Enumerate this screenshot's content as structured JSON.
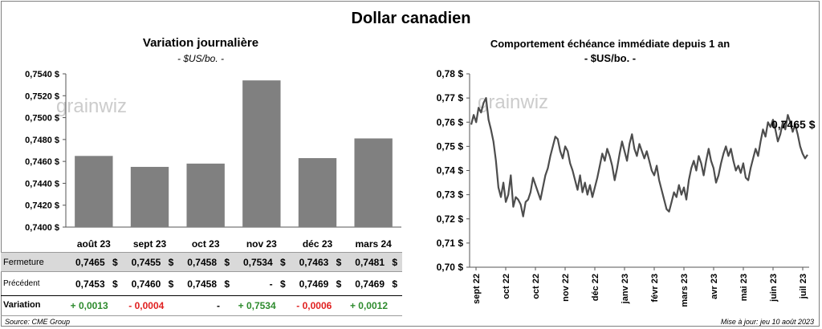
{
  "title": "Dollar canadien",
  "left_panel": {
    "title": "Variation  journalière",
    "subtitle": "- $US/bo. -"
  },
  "right_panel": {
    "title": "Comportement échéance immédiate depuis 1 an",
    "subtitle": "- $US/bo. -",
    "last_value_label": "0,7465 $"
  },
  "watermark": "grainwiz",
  "table": {
    "rows": [
      {
        "label": "Fermeture",
        "values": [
          "0,7465",
          "0,7455",
          "0,7458",
          "0,7534",
          "0,7463",
          "0,7481"
        ],
        "unit": "$"
      },
      {
        "label": "Précédent",
        "values": [
          "0,7453",
          "0,7460",
          "0,7458",
          "-",
          "0,7469",
          "0,7469"
        ],
        "unit": "$"
      }
    ],
    "variation_label": "Variation",
    "variation": [
      "+ 0,0013",
      "- 0,0004",
      "-",
      "+ 0,7534",
      "- 0,0006",
      "+ 0,0012"
    ]
  },
  "source": "Source: CME Group",
  "updated": "Mise à jour: jeu 10 août 2023",
  "colors": {
    "bar": "#808080",
    "line": "#4d4d4d",
    "table_band": "#d9d9d9",
    "positive": "#2e8b2e",
    "negative": "#e02020"
  },
  "chart_data": [
    {
      "type": "bar",
      "categories": [
        "août 23",
        "sept 23",
        "oct 23",
        "nov 23",
        "déc 23",
        "mars 24"
      ],
      "values": [
        0.7465,
        0.7455,
        0.7458,
        0.7534,
        0.7463,
        0.7481
      ],
      "ylim": [
        0.74,
        0.754
      ],
      "yticks": [
        0.74,
        0.742,
        0.744,
        0.746,
        0.748,
        0.75,
        0.752,
        0.754
      ],
      "ytick_labels": [
        "0,7400 $",
        "0,7420 $",
        "0,7440 $",
        "0,7460 $",
        "0,7480 $",
        "0,7500 $",
        "0,7520 $",
        "0,7540 $"
      ],
      "grid": false
    },
    {
      "type": "line",
      "ylim": [
        0.7,
        0.78
      ],
      "yticks": [
        0.7,
        0.71,
        0.72,
        0.73,
        0.74,
        0.75,
        0.76,
        0.77,
        0.78
      ],
      "ytick_labels": [
        "0,70 $",
        "0,71 $",
        "0,72 $",
        "0,73 $",
        "0,74 $",
        "0,75 $",
        "0,76 $",
        "0,77 $",
        "0,78 $"
      ],
      "xtick_labels": [
        "sept 22",
        "oct 22",
        "oct 22",
        "nov 22",
        "déc 22",
        "janv 23",
        "févr 23",
        "mars 23",
        "avr 23",
        "mai 23",
        "juin 23",
        "juil 23"
      ],
      "grid": false,
      "series": [
        {
          "values": [
            0.759,
            0.763,
            0.76,
            0.766,
            0.764,
            0.768,
            0.77,
            0.761,
            0.757,
            0.752,
            0.744,
            0.733,
            0.729,
            0.735,
            0.727,
            0.73,
            0.738,
            0.725,
            0.729,
            0.728,
            0.726,
            0.721,
            0.727,
            0.728,
            0.731,
            0.737,
            0.734,
            0.731,
            0.728,
            0.733,
            0.738,
            0.741,
            0.746,
            0.75,
            0.754,
            0.753,
            0.748,
            0.745,
            0.75,
            0.748,
            0.743,
            0.74,
            0.736,
            0.732,
            0.738,
            0.731,
            0.735,
            0.73,
            0.734,
            0.729,
            0.733,
            0.737,
            0.742,
            0.747,
            0.744,
            0.749,
            0.746,
            0.742,
            0.736,
            0.741,
            0.747,
            0.752,
            0.748,
            0.744,
            0.751,
            0.755,
            0.749,
            0.746,
            0.751,
            0.748,
            0.745,
            0.748,
            0.744,
            0.74,
            0.738,
            0.742,
            0.736,
            0.732,
            0.728,
            0.724,
            0.723,
            0.727,
            0.731,
            0.729,
            0.734,
            0.73,
            0.733,
            0.728,
            0.736,
            0.741,
            0.744,
            0.74,
            0.746,
            0.743,
            0.738,
            0.744,
            0.749,
            0.744,
            0.741,
            0.735,
            0.738,
            0.743,
            0.747,
            0.75,
            0.746,
            0.749,
            0.744,
            0.74,
            0.742,
            0.739,
            0.743,
            0.737,
            0.736,
            0.741,
            0.745,
            0.749,
            0.746,
            0.752,
            0.757,
            0.754,
            0.76,
            0.758,
            0.761,
            0.757,
            0.752,
            0.755,
            0.76,
            0.757,
            0.763,
            0.76,
            0.756,
            0.759,
            0.755,
            0.75,
            0.747,
            0.745,
            0.7465
          ]
        }
      ]
    }
  ]
}
